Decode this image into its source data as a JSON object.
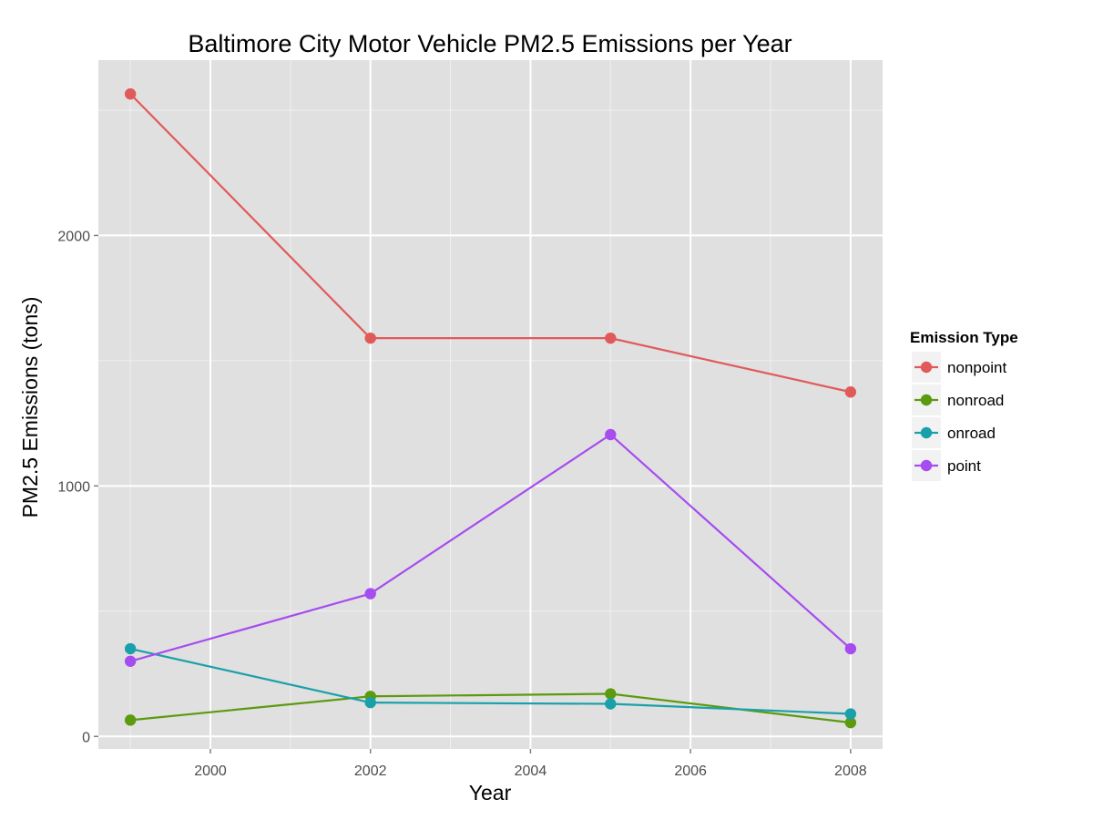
{
  "chart_data": {
    "type": "line",
    "title": "Baltimore City Motor Vehicle PM2.5 Emissions per Year",
    "xlabel": "Year",
    "ylabel": "PM2.5 Emissions (tons)",
    "x": [
      1999,
      2002,
      2005,
      2008
    ],
    "xlim": [
      1998.6,
      2008.4
    ],
    "ylim": [
      -50,
      2700
    ],
    "x_ticks": [
      2000,
      2002,
      2004,
      2006,
      2008
    ],
    "x_tick_labels": [
      "2000",
      "2002",
      "2004",
      "2006",
      "2008"
    ],
    "y_ticks": [
      0,
      1000,
      2000
    ],
    "y_tick_labels": [
      "0",
      "1000",
      "2000"
    ],
    "grid": true,
    "legend_position": "right",
    "legend_title": "Emission Type",
    "series": [
      {
        "name": "nonpoint",
        "color": "#E15A5A",
        "values": [
          2565,
          1590,
          1590,
          1375
        ]
      },
      {
        "name": "nonroad",
        "color": "#5C9A0F",
        "values": [
          65,
          160,
          170,
          55
        ]
      },
      {
        "name": "onroad",
        "color": "#1AA0AA",
        "values": [
          350,
          135,
          130,
          90
        ]
      },
      {
        "name": "point",
        "color": "#A64CF0",
        "values": [
          300,
          570,
          1205,
          350
        ]
      }
    ],
    "panel_background": "#E0E0E0",
    "grid_color": "#FFFFFF"
  }
}
